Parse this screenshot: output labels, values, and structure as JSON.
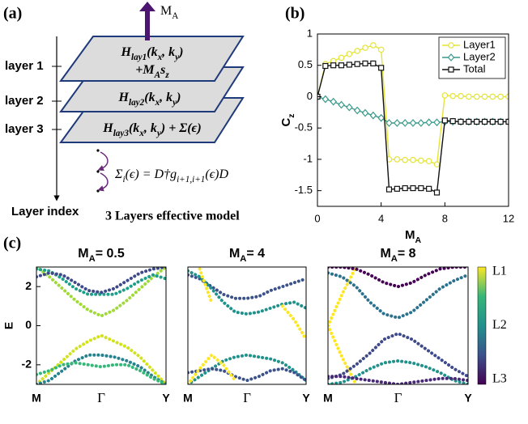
{
  "panel_a": {
    "label": "(a)",
    "moment": [
      "M",
      "A"
    ],
    "layers": [
      "layer 1",
      "layer 2",
      "layer 3"
    ],
    "axis_label": "Layer index",
    "caption": "3 Layers effective model",
    "h1": [
      "H",
      "lay1",
      "(k",
      "x",
      ", k",
      "y",
      ")"
    ],
    "h1b": [
      "+M",
      "A",
      "s",
      "z"
    ],
    "h2": [
      "H",
      "lay2",
      "(k",
      "x",
      ", k",
      "y",
      ")"
    ],
    "h3": [
      "H",
      "lay3",
      "(k",
      "x",
      ", k",
      "y",
      ") + Σ(ϵ)"
    ],
    "sigma": [
      "Σ",
      "i",
      "(ϵ) = D†g",
      "i+1,i+1",
      "(ϵ)D"
    ]
  },
  "chart_data": [
    {
      "type": "line",
      "panel": "(b)",
      "x": [
        0,
        0.5,
        1,
        1.5,
        2,
        2.5,
        3,
        3.5,
        4,
        4.5,
        5,
        5.5,
        6,
        6.5,
        7,
        7.5,
        8,
        8.5,
        9,
        9.5,
        10,
        10.5,
        11,
        11.5,
        12
      ],
      "xlim": [
        0,
        12
      ],
      "xticks": [
        0,
        4,
        8,
        12
      ],
      "ylim": [
        -1.75,
        1
      ],
      "yticks": [
        -1.5,
        -1,
        -0.5,
        0,
        0.5,
        1
      ],
      "x_label": [
        "M",
        "A"
      ],
      "y_label": [
        "C",
        "z"
      ],
      "legend": "upper right",
      "series": [
        {
          "name": "Layer1",
          "color": "#e4e43a",
          "marker": "circle",
          "values": [
            0,
            0.52,
            0.57,
            0.62,
            0.68,
            0.73,
            0.78,
            0.82,
            0.75,
            -1.0,
            -1.0,
            -1.01,
            -1.01,
            -1.02,
            -1.03,
            -1.08,
            0.02,
            0.01,
            0.01,
            0,
            0,
            0,
            0,
            0,
            0
          ]
        },
        {
          "name": "Layer2",
          "color": "#3a9a8c",
          "marker": "diamond",
          "values": [
            0,
            -0.04,
            -0.08,
            -0.13,
            -0.17,
            -0.22,
            -0.26,
            -0.3,
            -0.34,
            -0.42,
            -0.42,
            -0.42,
            -0.42,
            -0.42,
            -0.41,
            -0.41,
            -0.4,
            -0.4,
            -0.4,
            -0.4,
            -0.4,
            -0.4,
            -0.4,
            -0.4,
            -0.4
          ]
        },
        {
          "name": "Total",
          "color": "#111111",
          "marker": "square",
          "values": [
            0,
            0.49,
            0.5,
            0.5,
            0.51,
            0.52,
            0.53,
            0.53,
            0.46,
            -1.48,
            -1.47,
            -1.46,
            -1.46,
            -1.46,
            -1.47,
            -1.53,
            -0.38,
            -0.39,
            -0.4,
            -0.4,
            -0.4,
            -0.4,
            -0.4,
            -0.4,
            -0.4
          ]
        }
      ]
    },
    {
      "type": "line",
      "panel": "(c)",
      "title": [
        "M",
        "A",
        "= 0.5"
      ],
      "categories": [
        "M",
        "Γ",
        "Y"
      ],
      "x": [
        0,
        0.1,
        0.2,
        0.3,
        0.4,
        0.5,
        0.6,
        0.7,
        0.8,
        0.9,
        1
      ],
      "xlim": [
        0,
        1
      ],
      "ylim": [
        -3,
        3
      ],
      "yticks": [
        -2,
        0,
        2
      ],
      "y_label": "E",
      "series": [
        {
          "color": "#a0da39",
          "values": [
            3.0,
            2.5,
            1.9,
            1.3,
            0.8,
            0.5,
            0.8,
            1.3,
            1.9,
            2.5,
            3.0
          ]
        },
        {
          "color": "#1f9e89",
          "values": [
            2.9,
            2.8,
            2.4,
            1.9,
            1.6,
            1.6,
            1.6,
            1.9,
            2.3,
            2.6,
            2.4
          ]
        },
        {
          "color": "#3e4a89",
          "values": [
            2.5,
            2.7,
            2.6,
            2.2,
            1.8,
            1.7,
            1.9,
            2.3,
            2.7,
            2.9,
            3.0
          ]
        },
        {
          "color": "#d2e21b",
          "values": [
            -3.0,
            -2.4,
            -1.8,
            -1.2,
            -0.8,
            -0.5,
            -0.8,
            -1.1,
            -1.6,
            -2.3,
            -3.0
          ]
        },
        {
          "color": "#26828e",
          "values": [
            -3.0,
            -2.8,
            -2.3,
            -1.8,
            -1.5,
            -1.5,
            -1.6,
            -1.8,
            -2.1,
            -2.6,
            -3.0
          ]
        },
        {
          "color": "#35b779",
          "values": [
            -2.5,
            -2.3,
            -2.0,
            -1.9,
            -2.0,
            -2.1,
            -2.0,
            -2.0,
            -2.3,
            -2.7,
            -3.0
          ]
        }
      ]
    },
    {
      "type": "line",
      "title": [
        "M",
        "A",
        "= 4"
      ],
      "categories": [
        "M",
        "Γ",
        "Y"
      ],
      "x": [
        0,
        0.1,
        0.2,
        0.3,
        0.4,
        0.5,
        0.6,
        0.7,
        0.8,
        0.9,
        1
      ],
      "xlim": [
        0,
        1
      ],
      "ylim": [
        -3,
        3
      ],
      "series": [
        {
          "color": "#3b528b",
          "values": [
            2.6,
            2.4,
            2.0,
            1.6,
            1.4,
            1.4,
            1.5,
            1.8,
            2.0,
            2.2,
            2.4
          ]
        },
        {
          "color": "#21918c",
          "values": [
            2.8,
            2.5,
            1.9,
            1.2,
            0.7,
            0.6,
            0.7,
            0.9,
            1.1,
            1.2,
            0.9
          ]
        },
        {
          "color": "#fde725",
          "values": [
            null,
            2.9,
            1.2,
            null,
            null,
            null,
            null,
            null,
            null,
            null,
            null
          ]
        },
        {
          "color": "#fde725",
          "values": [
            null,
            null,
            null,
            null,
            null,
            null,
            null,
            null,
            1.0,
            0.3,
            -0.7
          ]
        },
        {
          "color": "#21918c",
          "values": [
            -3.0,
            -2.6,
            -2.2,
            -1.8,
            -1.6,
            -1.5,
            -1.6,
            -1.7,
            -1.9,
            -2.3,
            -2.8
          ]
        },
        {
          "color": "#3b528b",
          "values": [
            -2.4,
            -2.3,
            -2.2,
            -2.3,
            -2.6,
            -2.8,
            -2.6,
            -2.3,
            -2.2,
            -2.4,
            -2.8
          ]
        },
        {
          "color": "#fde725",
          "values": [
            -3.0,
            -2.2,
            -1.5,
            -2.0,
            -2.8,
            null,
            null,
            null,
            null,
            null,
            null
          ]
        }
      ]
    },
    {
      "type": "line",
      "title": [
        "M",
        "A",
        "= 8"
      ],
      "categories": [
        "M",
        "Γ",
        "Y"
      ],
      "x": [
        0,
        0.1,
        0.2,
        0.3,
        0.4,
        0.5,
        0.6,
        0.7,
        0.8,
        0.9,
        1
      ],
      "xlim": [
        0,
        1
      ],
      "ylim": [
        -3,
        3
      ],
      "series": [
        {
          "color": "#fde725",
          "values": [
            0,
            1.6,
            3.0,
            null,
            null,
            null,
            null,
            null,
            null,
            null,
            null
          ]
        },
        {
          "color": "#fde725",
          "values": [
            0,
            -1.6,
            -3.0,
            null,
            null,
            null,
            null,
            null,
            null,
            null,
            null
          ]
        },
        {
          "color": "#440154",
          "values": [
            3.0,
            3.0,
            2.9,
            2.6,
            2.2,
            2.0,
            2.2,
            2.6,
            2.9,
            3.0,
            3.0
          ]
        },
        {
          "color": "#2c728e",
          "values": [
            2.7,
            2.5,
            2.0,
            1.2,
            0.6,
            0.4,
            0.7,
            1.3,
            1.9,
            2.3,
            2.6
          ]
        },
        {
          "color": "#3e4a89",
          "values": [
            -2.7,
            -2.5,
            -2.0,
            -1.4,
            -0.7,
            -0.4,
            -0.7,
            -1.2,
            -1.7,
            -2.2,
            -2.6
          ]
        },
        {
          "color": "#21918c",
          "values": [
            -3.0,
            -2.9,
            -2.6,
            -2.2,
            -1.9,
            -1.8,
            -1.9,
            -2.1,
            -2.4,
            -2.8,
            -3.0
          ]
        },
        {
          "color": "#482878",
          "values": [
            -2.6,
            -2.6,
            -2.7,
            -2.8,
            -2.9,
            -3.0,
            -2.9,
            -2.8,
            -2.7,
            -2.7,
            -2.8
          ]
        }
      ]
    }
  ],
  "colorbar": {
    "labels": [
      "L1",
      "L2",
      "L3"
    ],
    "colors": [
      "#fde725",
      "#35b779",
      "#21918c",
      "#3b528b",
      "#440154"
    ]
  }
}
